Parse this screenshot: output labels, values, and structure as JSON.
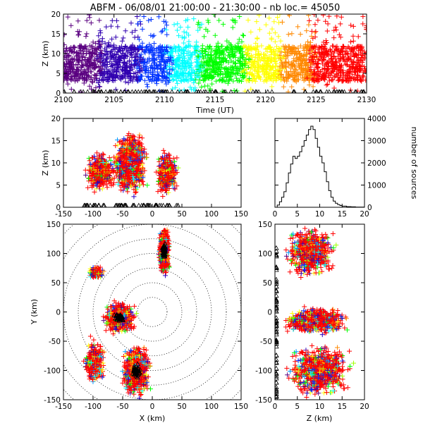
{
  "chart_data": [
    {
      "type": "scatter",
      "panel": "time-height",
      "title": "ABFM - 06/08/01 21:00:00 - 21:30:00 - nb loc.=  45050",
      "xlabel": "Time (UT)",
      "ylabel": "Z (km)",
      "xlim": [
        2100,
        2130
      ],
      "ylim": [
        0,
        20
      ],
      "xticks": [
        "2100",
        "2105",
        "2110",
        "2115",
        "2120",
        "2125",
        "2130"
      ],
      "yticks": [
        "0",
        "5",
        "10",
        "15",
        "20"
      ],
      "color_scale": "rainbow by time: purple (2100) → blue → cyan → green → yellow → orange → red (2130)",
      "bulk_altitude_km": [
        3,
        12
      ],
      "scatter_altitude_km": [
        0,
        20
      ],
      "ground_markers": "triangles near Z = 0"
    },
    {
      "type": "scatter",
      "panel": "x-height",
      "xlabel": "",
      "ylabel": "Z (km)",
      "xlim": [
        -150,
        150
      ],
      "ylim": [
        0,
        20
      ],
      "xticks": [
        "-150",
        "-100",
        "-50",
        "0",
        "50",
        "100",
        "150"
      ],
      "yticks": [
        "0",
        "5",
        "10",
        "15",
        "20"
      ],
      "clusters": [
        {
          "x_range": [
            -115,
            -60
          ],
          "z_range": [
            3,
            13
          ]
        },
        {
          "x_range": [
            -70,
            -5
          ],
          "z_range": [
            2,
            18
          ]
        },
        {
          "x_range": [
            5,
            45
          ],
          "z_range": [
            2,
            13
          ]
        }
      ]
    },
    {
      "type": "line",
      "panel": "altitude-histogram",
      "xlabel": "",
      "ylabel": "number of sources",
      "xlim": [
        0,
        20
      ],
      "ylim": [
        0,
        4000
      ],
      "xticks": [
        "0",
        "5",
        "10",
        "15",
        "20"
      ],
      "yticks": [
        "0",
        "1000",
        "2000",
        "3000",
        "4000"
      ],
      "x": [
        0,
        0.5,
        1,
        1.5,
        2,
        2.5,
        3,
        3.5,
        4,
        4.5,
        5,
        5.5,
        6,
        6.5,
        7,
        7.5,
        8,
        8.5,
        9,
        9.5,
        10,
        10.5,
        11,
        11.5,
        12,
        12.5,
        13,
        13.5,
        14,
        14.5,
        15,
        16,
        17,
        18,
        19,
        20
      ],
      "y": [
        0,
        100,
        250,
        450,
        700,
        1100,
        1550,
        1950,
        2300,
        2200,
        2300,
        2500,
        2750,
        3000,
        3250,
        3500,
        3650,
        3500,
        3100,
        2700,
        2300,
        2000,
        1600,
        1150,
        750,
        450,
        280,
        180,
        120,
        80,
        50,
        30,
        20,
        10,
        5,
        0
      ]
    },
    {
      "type": "scatter",
      "panel": "plan-view",
      "xlabel": "X (km)",
      "ylabel": "Y (km)",
      "xlim": [
        -150,
        150
      ],
      "ylim": [
        -150,
        150
      ],
      "xticks": [
        "-150",
        "-100",
        "-50",
        "0",
        "50",
        "100",
        "150"
      ],
      "yticks": [
        "-150",
        "-100",
        "-50",
        "0",
        "50",
        "100",
        "150"
      ],
      "range_rings": "dotted circles centered at (0, 0)",
      "clusters": [
        {
          "x": [
            10,
            30
          ],
          "y": [
            60,
            150
          ]
        },
        {
          "x": [
            -110,
            -80
          ],
          "y": [
            55,
            80
          ]
        },
        {
          "x": [
            -85,
            -25
          ],
          "y": [
            -40,
            20
          ]
        },
        {
          "x": [
            -55,
            0
          ],
          "y": [
            -150,
            -50
          ]
        },
        {
          "x": [
            -120,
            -75
          ],
          "y": [
            -130,
            -40
          ]
        }
      ]
    },
    {
      "type": "scatter",
      "panel": "height-y",
      "xlabel": "Z (km)",
      "ylabel": "",
      "xlim": [
        0,
        20
      ],
      "ylim": [
        -150,
        150
      ],
      "xticks": [
        "0",
        "5",
        "10",
        "15",
        "20"
      ],
      "yticks": [
        "-150",
        "-100",
        "-50",
        "0",
        "50",
        "100",
        "150"
      ],
      "clusters": [
        {
          "z": [
            2,
            14
          ],
          "y": [
            55,
            150
          ]
        },
        {
          "z": [
            1,
            17
          ],
          "y": [
            -40,
            10
          ]
        },
        {
          "z": [
            2,
            18
          ],
          "y": [
            -150,
            -50
          ]
        }
      ]
    }
  ],
  "colors": {
    "early": "#5a0080",
    "blue": "#0033ff",
    "cyan": "#00ffff",
    "green": "#00ff00",
    "yellow": "#ffff00",
    "orange": "#ff8800",
    "late": "#ff0000"
  }
}
